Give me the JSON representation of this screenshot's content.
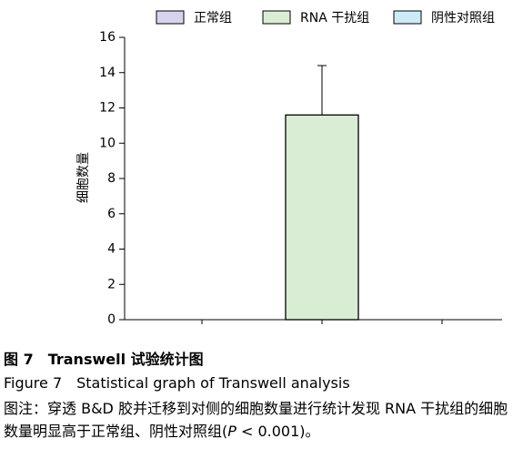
{
  "chart_data": {
    "type": "bar",
    "y_label": "细胞数量",
    "categories": [
      null,
      null,
      null
    ],
    "series": [
      {
        "name": "正常组",
        "color": "#d9d2ee",
        "values": [
          0,
          null,
          null
        ]
      },
      {
        "name": "RNA 干扰组",
        "color": "#d9edd4",
        "values": [
          null,
          11.6,
          null
        ],
        "errors": [
          null,
          2.8,
          null
        ]
      },
      {
        "name": "阴性对照组",
        "color": "#cdeaf7",
        "values": [
          null,
          null,
          0
        ]
      }
    ],
    "ylim": [
      0,
      16
    ],
    "yticks": [
      0,
      2,
      4,
      6,
      8,
      10,
      12,
      14,
      16
    ],
    "grid": false,
    "legend": "top"
  },
  "caption": {
    "title_cn": "图 7　Transwell 试验统计图",
    "title_en": "Figure 7　Statistical graph of Transwell analysis",
    "note": [
      "图注：穿透 B&D 胶并迁移到对侧的细胞数量进行统计发现 RNA 干扰组的细胞数量明显高于正常组、阴性对照组(",
      "P",
      " < 0.001)。"
    ]
  }
}
